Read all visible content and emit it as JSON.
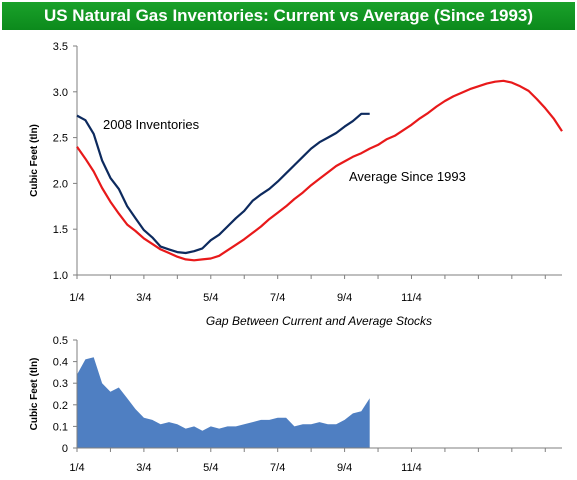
{
  "page_title": "US Natural Gas Inventories: Current vs Average (Since 1993)",
  "colors": {
    "title_background": "#119624",
    "current_line": "#0d2a5e",
    "average_line": "#e8191a",
    "gap_area": "#4f7fc2"
  },
  "chart_data": [
    {
      "type": "line",
      "xlabel": "",
      "ylabel": "Cubic Feet (tln)",
      "ylim": [
        1.0,
        3.5
      ],
      "yticks": [
        "1.0",
        "1.5",
        "2.0",
        "2.5",
        "3.0",
        "3.5"
      ],
      "xticks": [
        "1/4",
        "3/4",
        "5/4",
        "7/4",
        "9/4",
        "11/4"
      ],
      "x_week_range": [
        0,
        58
      ],
      "grid": false,
      "series": [
        {
          "name": "2008 Inventories",
          "x": [
            0,
            1,
            2,
            3,
            4,
            5,
            6,
            7,
            8,
            9,
            10,
            11,
            12,
            13,
            14,
            15,
            16,
            17,
            18,
            19,
            20,
            21,
            22,
            23,
            24,
            25,
            26,
            27,
            28,
            29,
            30,
            31,
            32,
            33,
            34,
            35
          ],
          "values": [
            2.74,
            2.69,
            2.54,
            2.25,
            2.06,
            1.94,
            1.75,
            1.62,
            1.49,
            1.41,
            1.31,
            1.28,
            1.25,
            1.24,
            1.26,
            1.29,
            1.38,
            1.44,
            1.53,
            1.62,
            1.7,
            1.81,
            1.88,
            1.94,
            2.02,
            2.11,
            2.2,
            2.29,
            2.38,
            2.45,
            2.5,
            2.55,
            2.62,
            2.68,
            2.76,
            2.76
          ]
        },
        {
          "name": "Average Since 1993",
          "x": [
            0,
            1,
            2,
            3,
            4,
            5,
            6,
            7,
            8,
            9,
            10,
            11,
            12,
            13,
            14,
            15,
            16,
            17,
            18,
            19,
            20,
            21,
            22,
            23,
            24,
            25,
            26,
            27,
            28,
            29,
            30,
            31,
            32,
            33,
            34,
            35,
            36,
            37,
            38,
            39,
            40,
            41,
            42,
            43,
            44,
            45,
            46,
            47,
            48,
            49,
            50,
            51,
            52,
            53,
            54,
            55,
            56,
            57,
            58
          ],
          "values": [
            2.4,
            2.27,
            2.13,
            1.95,
            1.8,
            1.67,
            1.55,
            1.48,
            1.4,
            1.34,
            1.28,
            1.24,
            1.2,
            1.17,
            1.16,
            1.17,
            1.18,
            1.21,
            1.27,
            1.33,
            1.39,
            1.46,
            1.53,
            1.61,
            1.68,
            1.75,
            1.83,
            1.9,
            1.98,
            2.05,
            2.12,
            2.19,
            2.24,
            2.29,
            2.33,
            2.38,
            2.42,
            2.48,
            2.52,
            2.58,
            2.64,
            2.71,
            2.77,
            2.84,
            2.9,
            2.95,
            2.99,
            3.03,
            3.06,
            3.09,
            3.11,
            3.12,
            3.1,
            3.06,
            3.01,
            2.92,
            2.82,
            2.71,
            2.57
          ]
        }
      ]
    },
    {
      "type": "area",
      "title": "Gap Between Current and Average Stocks",
      "ylabel": "Cubic Feet (tln)",
      "ylim": [
        0,
        0.5
      ],
      "yticks": [
        "0",
        "0.1",
        "0.2",
        "0.3",
        "0.4",
        "0.5"
      ],
      "xticks": [
        "1/4",
        "3/4",
        "5/4",
        "7/4",
        "9/4",
        "11/4"
      ],
      "x_week_range": [
        0,
        58
      ],
      "grid": false,
      "series": [
        {
          "name": "",
          "x": [
            0,
            1,
            2,
            3,
            4,
            5,
            6,
            7,
            8,
            9,
            10,
            11,
            12,
            13,
            14,
            15,
            16,
            17,
            18,
            19,
            20,
            21,
            22,
            23,
            24,
            25,
            26,
            27,
            28,
            29,
            30,
            31,
            32,
            33,
            34,
            35
          ],
          "values": [
            0.34,
            0.41,
            0.42,
            0.3,
            0.26,
            0.28,
            0.23,
            0.18,
            0.14,
            0.13,
            0.11,
            0.12,
            0.11,
            0.09,
            0.1,
            0.08,
            0.1,
            0.09,
            0.1,
            0.1,
            0.11,
            0.12,
            0.13,
            0.13,
            0.14,
            0.14,
            0.1,
            0.11,
            0.11,
            0.12,
            0.11,
            0.11,
            0.13,
            0.16,
            0.17,
            0.23
          ]
        }
      ]
    }
  ]
}
